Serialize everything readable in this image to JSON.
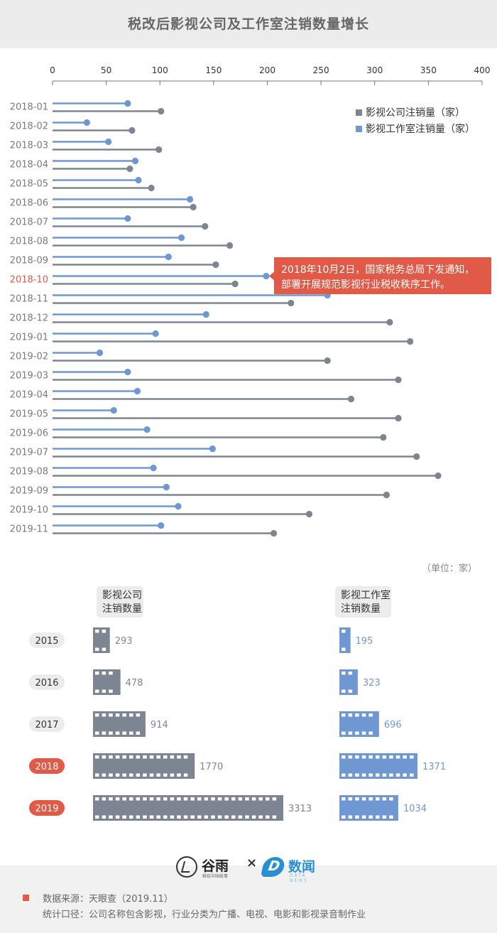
{
  "title": "税改后影视公司及工作室注销数量增长",
  "colors": {
    "company": "#7d8593",
    "studio": "#6f98d2",
    "highlight": "#e05a47",
    "label": "#7a7a7a"
  },
  "chart_data": [
    {
      "type": "lollipop",
      "orientation": "horizontal",
      "xlim": [
        0,
        400
      ],
      "xticks": [
        0,
        50,
        100,
        150,
        200,
        250,
        300,
        350,
        400
      ],
      "highlight_category": "2018-10",
      "categories": [
        "2018-01",
        "2018-02",
        "2018-03",
        "2018-04",
        "2018-05",
        "2018-06",
        "2018-07",
        "2018-08",
        "2018-09",
        "2018-10",
        "2018-11",
        "2018-12",
        "2019-01",
        "2019-02",
        "2019-03",
        "2019-04",
        "2019-05",
        "2019-06",
        "2019-07",
        "2019-08",
        "2019-09",
        "2019-10",
        "2019-11"
      ],
      "series": [
        {
          "name": "影视工作室注销量（家）",
          "key": "studio",
          "values": [
            70,
            32,
            52,
            77,
            80,
            128,
            70,
            120,
            108,
            199,
            256,
            143,
            96,
            44,
            70,
            79,
            57,
            88,
            149,
            94,
            106,
            117,
            101
          ]
        },
        {
          "name": "影视公司注销量（家）",
          "key": "company",
          "values": [
            101,
            74,
            99,
            72,
            92,
            131,
            142,
            165,
            152,
            170,
            222,
            314,
            333,
            256,
            322,
            278,
            322,
            308,
            339,
            359,
            311,
            239,
            206
          ]
        }
      ],
      "legend": {
        "position": "top-right",
        "entries": [
          "影视公司注销量（家）",
          "影视工作室注销量（家）"
        ]
      },
      "annotation": {
        "category": "2018-10",
        "lines": [
          "2018年10月2日，国家税务总局下发通知，",
          "部署开展规范影视行业税收秩序工作。"
        ]
      },
      "unit_note": "（单位：家）"
    },
    {
      "type": "bar",
      "orientation": "horizontal",
      "style": "film-strip",
      "categories": [
        "2015",
        "2016",
        "2017",
        "2018",
        "2019"
      ],
      "highlight_categories": [
        "2018",
        "2019"
      ],
      "series": [
        {
          "name_lines": [
            "影视公司",
            "注销数量"
          ],
          "key": "company",
          "values": [
            293,
            478,
            914,
            1770,
            3313
          ]
        },
        {
          "name_lines": [
            "影视工作室",
            "注销数量"
          ],
          "key": "studio",
          "values": [
            195,
            323,
            696,
            1371,
            1034
          ]
        }
      ]
    }
  ],
  "footer": {
    "logos": {
      "guyu": {
        "name": "谷雨",
        "tagline": "献给中国故事"
      },
      "times": "×",
      "shuwen": {
        "name": "数闻",
        "mark": "D",
        "tagline": "DATA NEWS"
      }
    },
    "source": "数据来源：天眼查（2019.11）",
    "scope": "统计口径：公司名称包含影视，行业分类为广播、电视、电影和影视录音制作业"
  }
}
